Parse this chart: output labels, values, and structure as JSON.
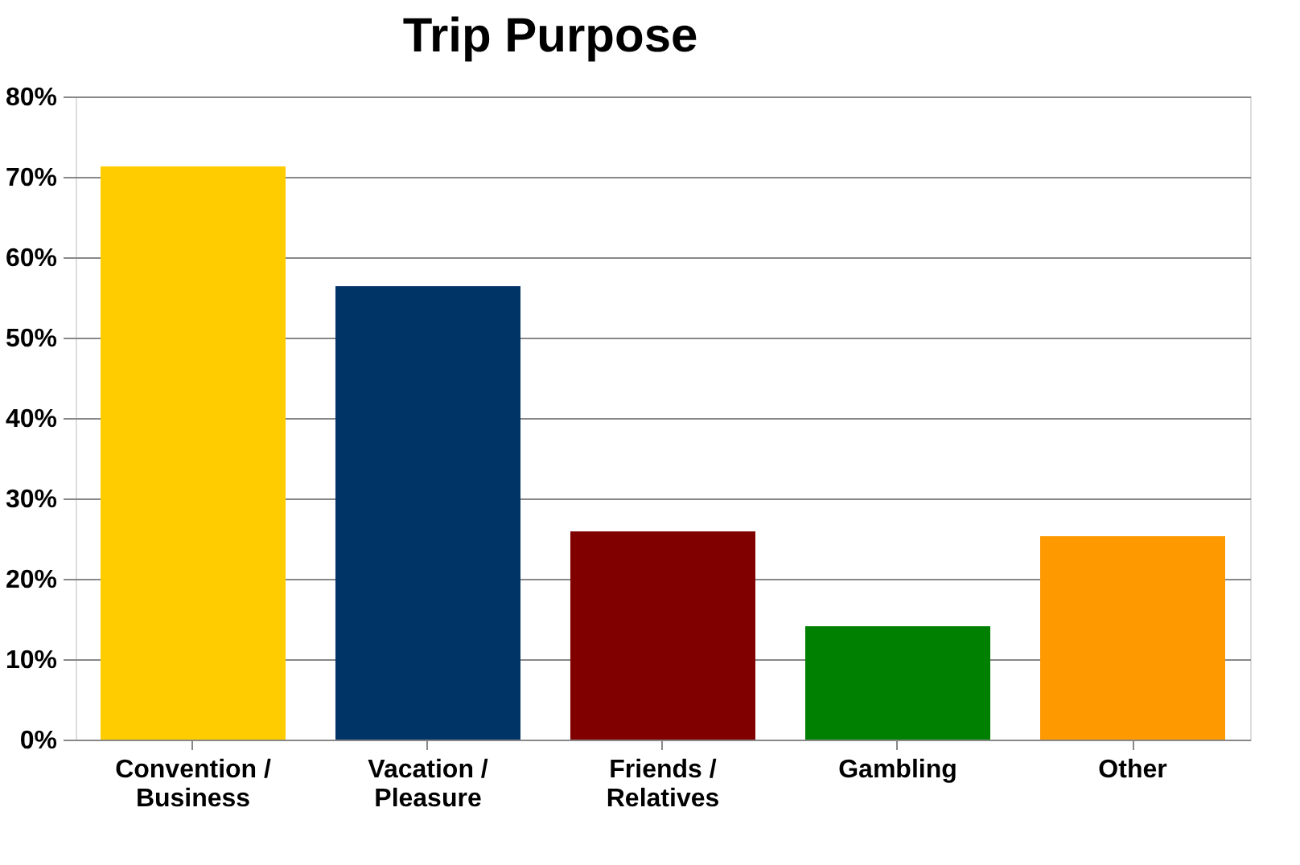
{
  "chart_data": {
    "type": "bar",
    "title": "Trip Purpose",
    "categories": [
      "Convention / Business",
      "Vacation / Pleasure",
      "Friends / Relatives",
      "Gambling",
      "Other"
    ],
    "values": [
      71.3,
      56.4,
      25.9,
      14.1,
      25.3
    ],
    "colors": [
      "#ffcc00",
      "#003366",
      "#800000",
      "#008000",
      "#ff9900"
    ],
    "ylim": [
      0,
      80
    ],
    "yticks": [
      {
        "value": 0,
        "label": "0%"
      },
      {
        "value": 10,
        "label": "10%"
      },
      {
        "value": 20,
        "label": "20%"
      },
      {
        "value": 30,
        "label": "30%"
      },
      {
        "value": 40,
        "label": "40%"
      },
      {
        "value": 50,
        "label": "50%"
      },
      {
        "value": 60,
        "label": "60%"
      },
      {
        "value": 70,
        "label": "70%"
      },
      {
        "value": 80,
        "label": "80%"
      }
    ],
    "grid": "y"
  }
}
